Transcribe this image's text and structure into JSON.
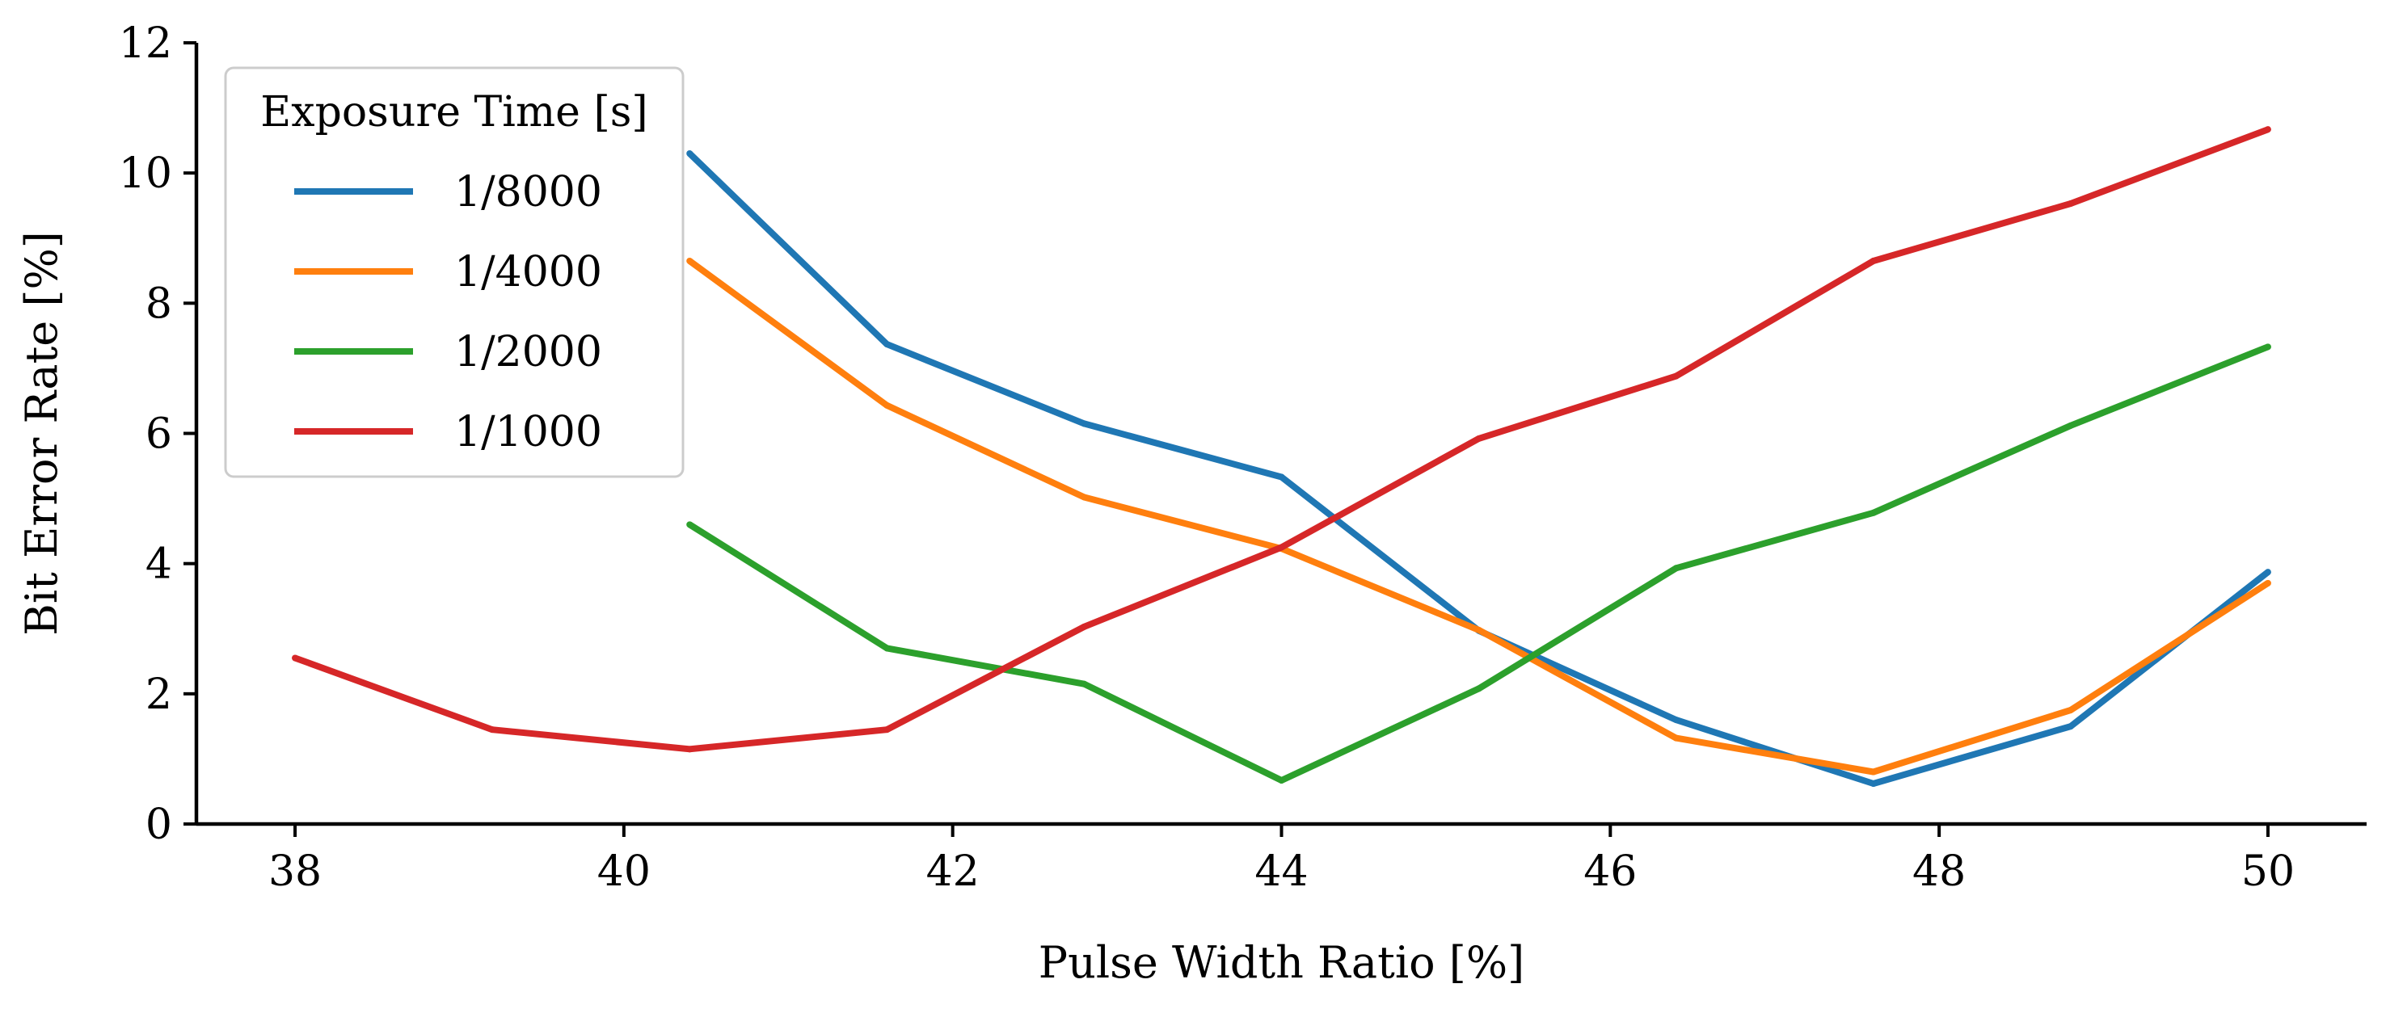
{
  "chart_data": {
    "type": "line",
    "title": "",
    "xlabel": "Pulse Width Ratio [%]",
    "ylabel": "Bit Error Rate [%]",
    "xlim": [
      37.4,
      50.6
    ],
    "ylim": [
      0,
      12
    ],
    "xticks": [
      38,
      40,
      42,
      44,
      46,
      48,
      50
    ],
    "yticks": [
      0,
      2,
      4,
      6,
      8,
      10,
      12
    ],
    "grid": false,
    "legend": {
      "title": "Exposure Time [s]",
      "position": "top-left"
    },
    "series": [
      {
        "name": "1/8000",
        "color": "#1f77b4",
        "x": [
          40.4,
          41.6,
          42.8,
          44.0,
          45.2,
          46.4,
          47.6,
          48.8,
          50.0
        ],
        "y": [
          10.3,
          7.37,
          6.15,
          5.33,
          2.97,
          1.6,
          0.62,
          1.5,
          3.87
        ]
      },
      {
        "name": "1/4000",
        "color": "#ff7f0e",
        "x": [
          40.4,
          41.6,
          42.8,
          44.0,
          45.2,
          46.4,
          47.6,
          48.8,
          50.0
        ],
        "y": [
          8.65,
          6.43,
          5.02,
          4.23,
          2.98,
          1.32,
          0.8,
          1.75,
          3.7
        ]
      },
      {
        "name": "1/2000",
        "color": "#2ca02c",
        "x": [
          40.4,
          41.6,
          42.8,
          44.0,
          45.2,
          46.4,
          47.6,
          48.8,
          50.0
        ],
        "y": [
          4.6,
          2.7,
          2.15,
          0.67,
          2.08,
          3.93,
          4.78,
          6.12,
          7.33
        ]
      },
      {
        "name": "1/1000",
        "color": "#d62728",
        "x": [
          38.0,
          39.2,
          40.4,
          41.6,
          42.8,
          44.0,
          45.2,
          46.4,
          47.6,
          48.8,
          50.0
        ],
        "y": [
          2.55,
          1.45,
          1.15,
          1.45,
          3.03,
          4.25,
          5.92,
          6.88,
          8.65,
          9.53,
          10.67
        ]
      }
    ]
  }
}
